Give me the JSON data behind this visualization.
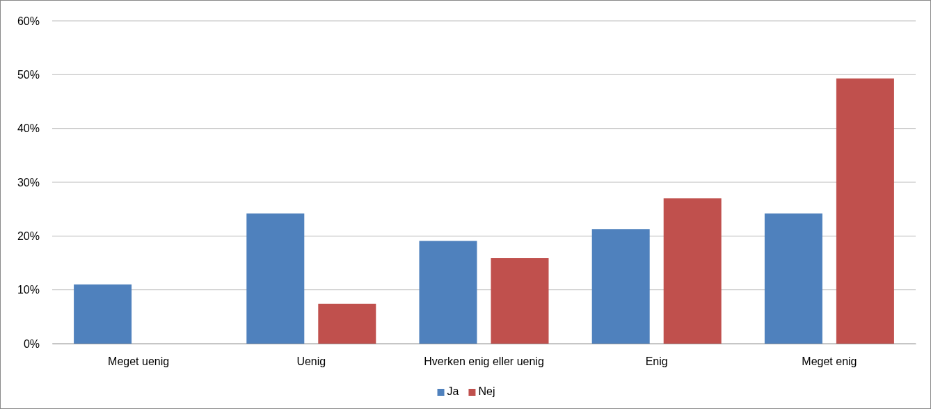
{
  "chart_data": {
    "type": "bar",
    "categories": [
      "Meget uenig",
      "Uenig",
      "Hverken enig eller uenig",
      "Enig",
      "Meget enig"
    ],
    "series": [
      {
        "name": "Ja",
        "color": "#4f81bd",
        "values": [
          11.0,
          24.2,
          19.1,
          21.3,
          24.2
        ]
      },
      {
        "name": "Nej",
        "color": "#c0504d",
        "values": [
          0,
          7.4,
          15.9,
          27.0,
          49.3
        ]
      }
    ],
    "ylim": [
      0,
      60
    ],
    "yticks": [
      {
        "value": 0,
        "label": "0%"
      },
      {
        "value": 10,
        "label": "10%"
      },
      {
        "value": 20,
        "label": "20%"
      },
      {
        "value": 30,
        "label": "30%"
      },
      {
        "value": 40,
        "label": "40%"
      },
      {
        "value": 50,
        "label": "50%"
      },
      {
        "value": 60,
        "label": "60%"
      }
    ],
    "grid": "y",
    "legend": "bottom"
  }
}
